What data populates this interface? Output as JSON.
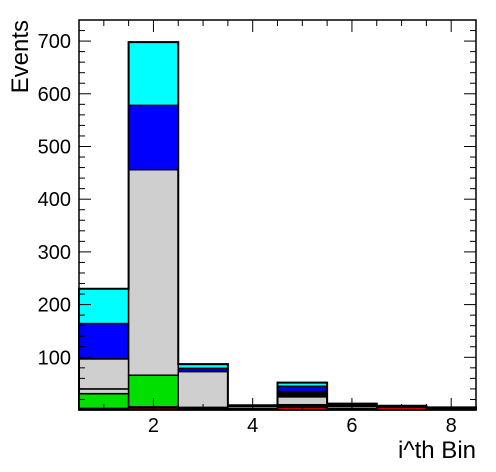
{
  "chart_data": {
    "type": "bar",
    "stacked": true,
    "histogram": true,
    "title": "",
    "xlabel": "i^th Bin",
    "ylabel": "Events",
    "xlim": [
      0.5,
      8.5
    ],
    "ylim": [
      0,
      740
    ],
    "grid": false,
    "legend": "none",
    "x_ticks": [
      "2",
      "4",
      "6",
      "8"
    ],
    "y_ticks": [
      "100",
      "200",
      "300",
      "400",
      "500",
      "600",
      "700"
    ],
    "bins": [
      1,
      2,
      3,
      4,
      5,
      6,
      7,
      8
    ],
    "series": [
      {
        "color": "#ff0000",
        "values": [
          2,
          4,
          2,
          1,
          5,
          1,
          5,
          3
        ]
      },
      {
        "color": "#ff8c00",
        "values": [
          1,
          2,
          1,
          1,
          3,
          1,
          1,
          1
        ]
      },
      {
        "color": "#00e000",
        "values": [
          28,
          60,
          2,
          1,
          2,
          1,
          0,
          0
        ]
      },
      {
        "color": "#cfcfcf",
        "values": [
          9,
          390,
          68,
          4,
          15,
          4,
          2,
          1
        ]
      },
      {
        "color": "#000000",
        "values": [
          0,
          0,
          0,
          0,
          4,
          2,
          0,
          0
        ]
      },
      {
        "color": "#d2b48c",
        "values": [
          0,
          0,
          0,
          0,
          3,
          0,
          0,
          0
        ]
      },
      {
        "color": "#cfcfcf",
        "values": [
          57,
          0,
          0,
          0,
          3,
          0,
          0,
          0
        ]
      },
      {
        "color": "#0000ff",
        "values": [
          67,
          122,
          6,
          1,
          10,
          2,
          0,
          0
        ]
      },
      {
        "color": "#00ffff",
        "values": [
          66,
          120,
          8,
          1,
          7,
          1,
          0,
          0
        ]
      }
    ],
    "totals": [
      230,
      698,
      87,
      9,
      52,
      12,
      8,
      5
    ]
  }
}
